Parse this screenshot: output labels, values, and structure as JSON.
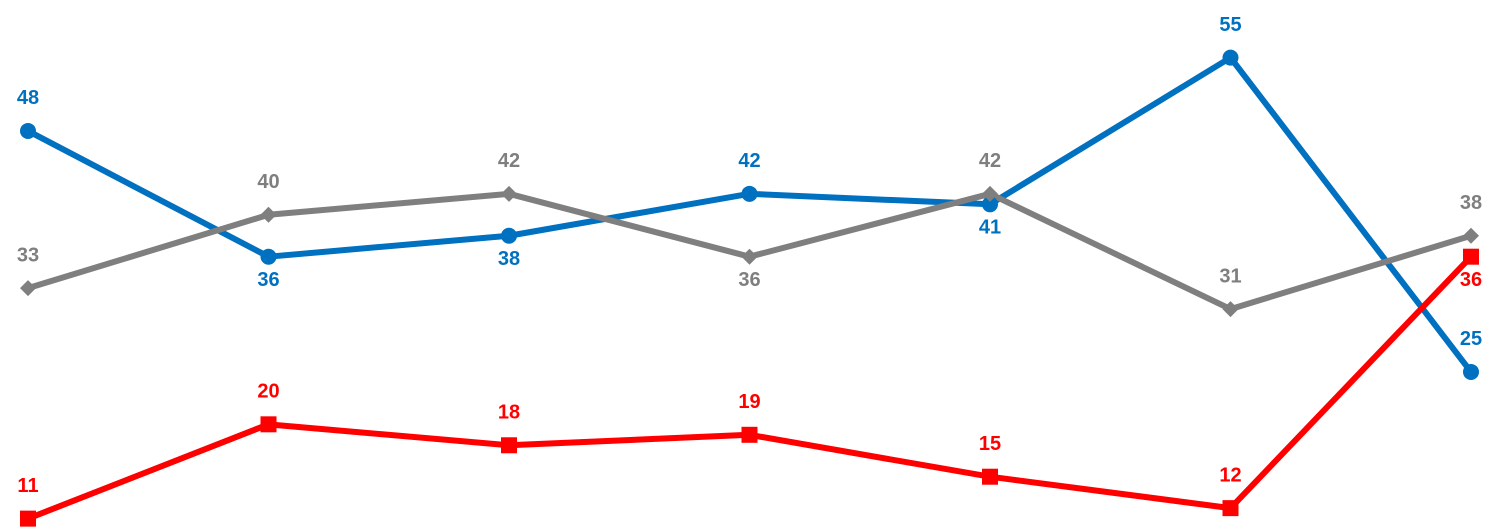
{
  "chart_data": {
    "type": "line",
    "categories": [
      null,
      null,
      null,
      null,
      null,
      null,
      null
    ],
    "series": [
      {
        "color": "#0070c0",
        "marker": "circle",
        "values": [
          48,
          36,
          38,
          42,
          41,
          55,
          25
        ]
      },
      {
        "color": "#7f7f7f",
        "marker": "diamond",
        "values": [
          33,
          40,
          42,
          36,
          42,
          31,
          38
        ]
      },
      {
        "color": "#ff0000",
        "marker": "square",
        "values": [
          11,
          20,
          18,
          19,
          15,
          12,
          36
        ]
      }
    ],
    "ylim": [
      10.2,
      60.5
    ],
    "grid": false
  }
}
